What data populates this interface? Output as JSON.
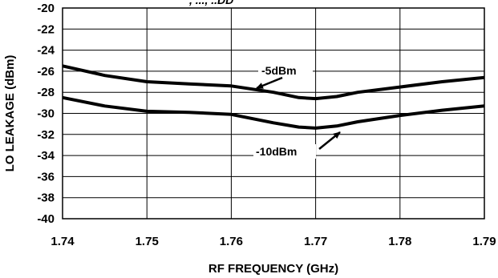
{
  "chart_data": {
    "type": "line",
    "title_fragment": ", ..., ..DD",
    "xlabel": "RF FREQUENCY (GHz)",
    "ylabel": "LO LEAKAGE (dBm)",
    "xlim": [
      1.74,
      1.79
    ],
    "ylim": [
      -40,
      -20
    ],
    "x_ticks": [
      "1.74",
      "1.75",
      "1.76",
      "1.77",
      "1.78",
      "1.79"
    ],
    "y_ticks": [
      "-20",
      "-22",
      "-24",
      "-26",
      "-28",
      "-30",
      "-32",
      "-34",
      "-36",
      "-38",
      "-40"
    ],
    "grid": true,
    "series": [
      {
        "name": "-5dBm",
        "x": [
          1.74,
          1.745,
          1.75,
          1.755,
          1.76,
          1.765,
          1.768,
          1.77,
          1.7725,
          1.775,
          1.78,
          1.785,
          1.79
        ],
        "y": [
          -25.5,
          -26.4,
          -27.0,
          -27.2,
          -27.4,
          -28.0,
          -28.5,
          -28.6,
          -28.4,
          -28.0,
          -27.5,
          -27.0,
          -26.6
        ]
      },
      {
        "name": "-10dBm",
        "x": [
          1.74,
          1.745,
          1.75,
          1.755,
          1.76,
          1.765,
          1.768,
          1.77,
          1.7725,
          1.775,
          1.78,
          1.785,
          1.79
        ],
        "y": [
          -28.5,
          -29.3,
          -29.8,
          -29.9,
          -30.1,
          -30.9,
          -31.3,
          -31.4,
          -31.2,
          -30.8,
          -30.2,
          -29.7,
          -29.3
        ]
      }
    ],
    "annotations": [
      {
        "text": "-5dBm",
        "series": "-5dBm"
      },
      {
        "text": "-10dBm",
        "series": "-10dBm"
      }
    ]
  }
}
